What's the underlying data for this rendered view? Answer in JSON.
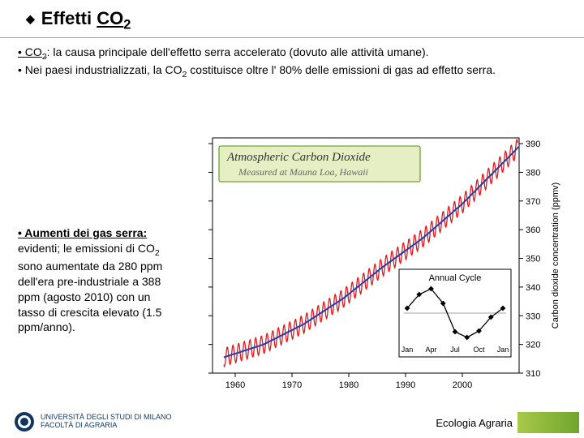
{
  "title_prefix": "Effetti ",
  "title_gas": "CO",
  "title_sub": "2",
  "paragraph1_a": "• CO",
  "paragraph1_b": ": la causa principale dell'effetto serra accelerato (dovuto alle attività umane).",
  "paragraph2_a": "• Nei paesi industrializzati, la CO",
  "paragraph2_b": " costituisce oltre l' 80% delle emissioni di gas ad effetto serra.",
  "side_heading": "• Aumenti dei gas serra:",
  "side_rest_a": " evidenti; le emissioni di CO",
  "side_rest_b": " sono aumentate da 280 ppm dell'era pre-industriale a 388 ppm (agosto 2010) con un tasso di crescita elevato (1.5 ppm/anno).",
  "footer_text": "Ecologia Agraria",
  "logo_line1": "UNIVERSITÀ DEGLI STUDI DI MILANO",
  "logo_line2": "FACOLTÀ DI AGRARIA",
  "chart": {
    "title_box": "Atmospheric Carbon Dioxide",
    "subtitle_box": "Measured at Mauna Loa, Hawaii",
    "title_bg": "#e6efc4",
    "title_border": "#6fa52d",
    "title_text_color": "#333333",
    "subtitle_text_color": "#666666",
    "y_axis_label": "Carbon dioxide concentration (ppmv)",
    "x_ticks": [
      1960,
      1970,
      1980,
      1990,
      2000
    ],
    "y_ticks": [
      310,
      320,
      330,
      340,
      350,
      360,
      370,
      380,
      390
    ],
    "xlim": [
      1956,
      2010
    ],
    "ylim": [
      310,
      392
    ],
    "series_color": "#e4181b",
    "trend_color": "#1b3fbf",
    "axis_color": "#000000",
    "grid_color": "#dcdcdc",
    "background": "#ffffff",
    "trend_points": [
      [
        1958,
        315.5
      ],
      [
        1965,
        320.0
      ],
      [
        1972,
        327.0
      ],
      [
        1979,
        336.0
      ],
      [
        1986,
        347.0
      ],
      [
        1993,
        357.0
      ],
      [
        2000,
        369.0
      ],
      [
        2007,
        383.0
      ],
      [
        2010,
        389.0
      ]
    ],
    "osc_amplitude": 3.2,
    "inset": {
      "title": "Annual Cycle",
      "x_labels": [
        "Jan",
        "Apr",
        "Jul",
        "Oct",
        "Jan"
      ],
      "values": [
        0.6,
        2.3,
        3.0,
        1.2,
        -2.3,
        -3.0,
        -2.2,
        -0.5,
        0.6
      ],
      "y_range": [
        -3.4,
        3.4
      ],
      "line_color": "#000000",
      "marker_color": "#000000",
      "bg": "#ffffff"
    }
  }
}
